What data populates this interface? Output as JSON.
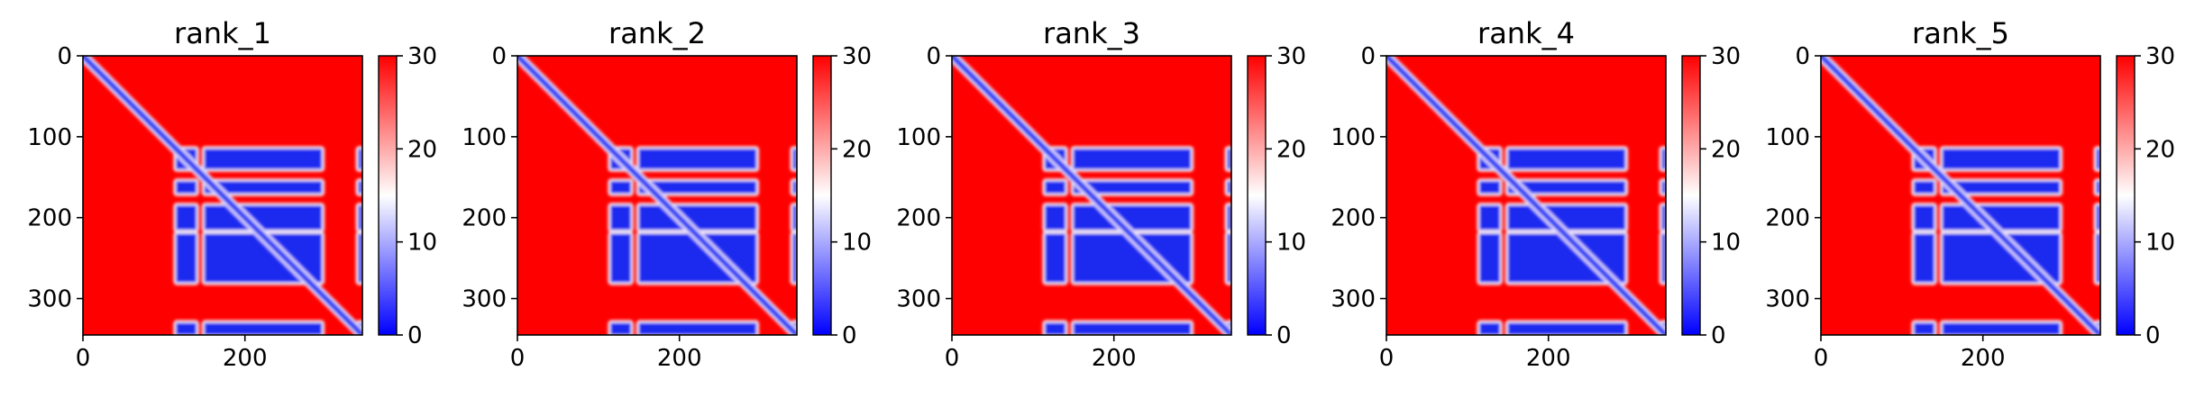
{
  "chart_data": [
    {
      "type": "heatmap",
      "title": "rank_1",
      "xlabel": "",
      "ylabel": "",
      "xlim": [
        0,
        345
      ],
      "ylim": [
        345,
        0
      ],
      "x_ticks": [
        0,
        200
      ],
      "y_ticks": [
        0,
        100,
        200,
        300
      ],
      "colorbar": {
        "range": [
          0,
          30
        ],
        "ticks": [
          0,
          10,
          20,
          30
        ],
        "colormap": "bwr"
      },
      "features": {
        "diagonal_band": true,
        "low_blocks": {
          "x": [
            [
              115,
              140
            ],
            [
              150,
              295
            ],
            [
              340,
              345
            ]
          ],
          "y": [
            [
              115,
              140
            ],
            [
              155,
              170
            ],
            [
              185,
              215
            ],
            [
              220,
              280
            ],
            [
              330,
              345
            ]
          ]
        }
      }
    },
    {
      "type": "heatmap",
      "title": "rank_2",
      "xlabel": "",
      "ylabel": "",
      "xlim": [
        0,
        345
      ],
      "ylim": [
        345,
        0
      ],
      "x_ticks": [
        0,
        200
      ],
      "y_ticks": [
        0,
        100,
        200,
        300
      ],
      "colorbar": {
        "range": [
          0,
          30
        ],
        "ticks": [
          0,
          10,
          20,
          30
        ],
        "colormap": "bwr"
      },
      "features": {
        "diagonal_band": true,
        "low_blocks": {
          "x": [
            [
              115,
              140
            ],
            [
              150,
              295
            ],
            [
              340,
              345
            ]
          ],
          "y": [
            [
              115,
              140
            ],
            [
              155,
              170
            ],
            [
              185,
              215
            ],
            [
              220,
              280
            ],
            [
              330,
              345
            ]
          ]
        }
      }
    },
    {
      "type": "heatmap",
      "title": "rank_3",
      "xlabel": "",
      "ylabel": "",
      "xlim": [
        0,
        345
      ],
      "ylim": [
        345,
        0
      ],
      "x_ticks": [
        0,
        200
      ],
      "y_ticks": [
        0,
        100,
        200,
        300
      ],
      "colorbar": {
        "range": [
          0,
          30
        ],
        "ticks": [
          0,
          10,
          20,
          30
        ],
        "colormap": "bwr"
      },
      "features": {
        "diagonal_band": true,
        "low_blocks": {
          "x": [
            [
              115,
              140
            ],
            [
              150,
              295
            ],
            [
              340,
              345
            ]
          ],
          "y": [
            [
              115,
              140
            ],
            [
              155,
              170
            ],
            [
              185,
              215
            ],
            [
              220,
              280
            ],
            [
              330,
              345
            ]
          ]
        }
      }
    },
    {
      "type": "heatmap",
      "title": "rank_4",
      "xlabel": "",
      "ylabel": "",
      "xlim": [
        0,
        345
      ],
      "ylim": [
        345,
        0
      ],
      "x_ticks": [
        0,
        200
      ],
      "y_ticks": [
        0,
        100,
        200,
        300
      ],
      "colorbar": {
        "range": [
          0,
          30
        ],
        "ticks": [
          0,
          10,
          20,
          30
        ],
        "colormap": "bwr"
      },
      "features": {
        "diagonal_band": true,
        "low_blocks": {
          "x": [
            [
              115,
              140
            ],
            [
              150,
              295
            ],
            [
              340,
              345
            ]
          ],
          "y": [
            [
              115,
              140
            ],
            [
              155,
              170
            ],
            [
              185,
              215
            ],
            [
              220,
              280
            ],
            [
              330,
              345
            ]
          ]
        }
      }
    },
    {
      "type": "heatmap",
      "title": "rank_5",
      "xlabel": "",
      "ylabel": "",
      "xlim": [
        0,
        345
      ],
      "ylim": [
        345,
        0
      ],
      "x_ticks": [
        0,
        200
      ],
      "y_ticks": [
        0,
        100,
        200,
        300
      ],
      "colorbar": {
        "range": [
          0,
          30
        ],
        "ticks": [
          0,
          10,
          20,
          30
        ],
        "colormap": "bwr"
      },
      "features": {
        "diagonal_band": true,
        "low_blocks": {
          "x": [
            [
              115,
              140
            ],
            [
              150,
              295
            ],
            [
              340,
              345
            ]
          ],
          "y": [
            [
              115,
              140
            ],
            [
              155,
              170
            ],
            [
              185,
              215
            ],
            [
              220,
              280
            ],
            [
              330,
              345
            ]
          ]
        }
      }
    }
  ],
  "colors": {
    "high": "#ff0000",
    "mid": "#ffffff",
    "low": "#0000ff",
    "axis": "#000000"
  }
}
